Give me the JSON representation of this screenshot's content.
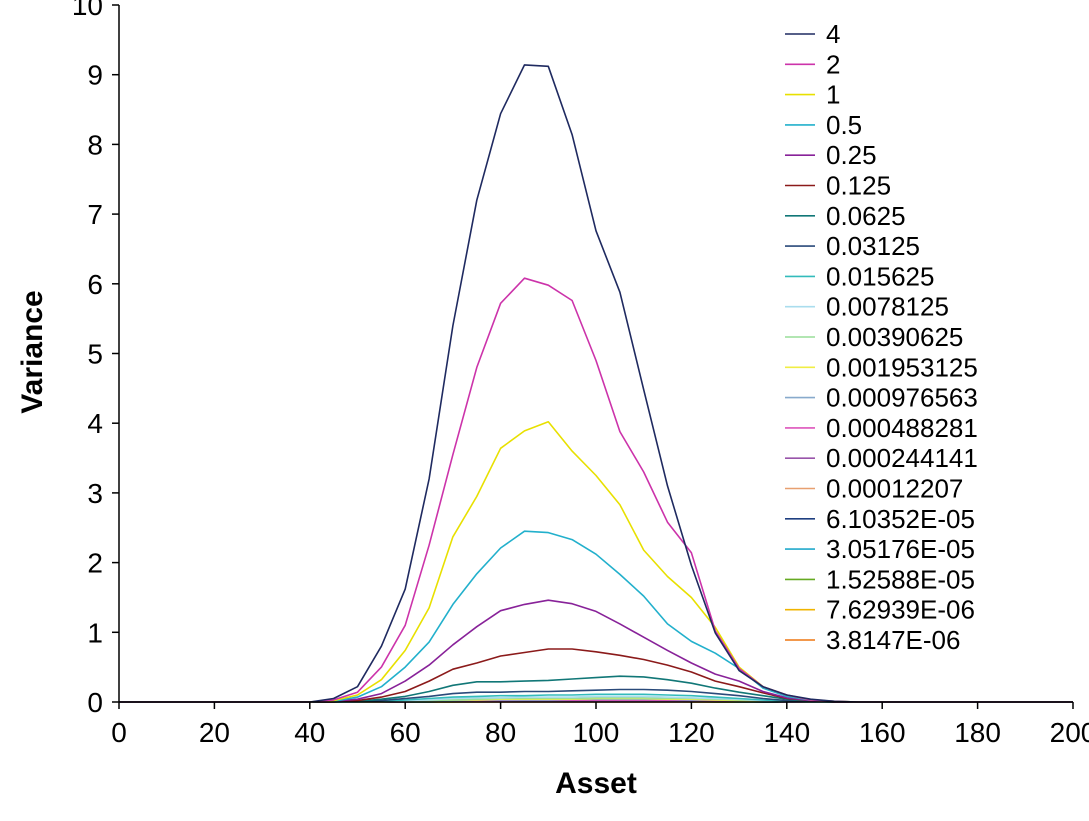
{
  "chart_data": {
    "type": "line",
    "xlabel": "Asset",
    "ylabel": "Variance",
    "xlim": [
      0,
      200
    ],
    "ylim": [
      0,
      10
    ],
    "x_ticks": [
      "0",
      "20",
      "40",
      "60",
      "80",
      "100",
      "120",
      "140",
      "160",
      "180",
      "200"
    ],
    "y_ticks": [
      "0",
      "1",
      "2",
      "3",
      "4",
      "5",
      "6",
      "7",
      "8",
      "9",
      "10"
    ],
    "grid": false,
    "legend_position": "top-right",
    "x": [
      0,
      5,
      10,
      15,
      20,
      25,
      30,
      35,
      40,
      45,
      50,
      55,
      60,
      65,
      70,
      75,
      80,
      85,
      90,
      95,
      100,
      105,
      110,
      115,
      120,
      125,
      130,
      135,
      140,
      145,
      150,
      155,
      160,
      165,
      170,
      175,
      180,
      185,
      190,
      195,
      200
    ],
    "series": [
      {
        "name": "4",
        "color": "#1f2a60",
        "values": [
          0,
          0,
          0,
          0,
          0,
          0,
          0,
          0,
          0,
          0.05,
          0.22,
          0.8,
          1.62,
          3.2,
          5.4,
          7.2,
          8.44,
          9.14,
          9.12,
          8.14,
          6.76,
          5.88,
          4.48,
          3.1,
          1.96,
          0.99,
          0.45,
          0.22,
          0.1,
          0.04,
          0.01,
          0,
          0,
          0,
          0,
          0,
          0,
          0,
          0,
          0,
          0
        ]
      },
      {
        "name": "2",
        "color": "#cc33aa",
        "values": [
          0,
          0,
          0,
          0,
          0,
          0,
          0,
          0,
          0,
          0.03,
          0.14,
          0.5,
          1.1,
          2.25,
          3.55,
          4.8,
          5.72,
          6.08,
          5.98,
          5.76,
          4.9,
          3.88,
          3.3,
          2.58,
          2.14,
          1.02,
          0.48,
          0.22,
          0.1,
          0.03,
          0.01,
          0,
          0,
          0,
          0,
          0,
          0,
          0,
          0,
          0,
          0
        ]
      },
      {
        "name": "1",
        "color": "#e8e000",
        "values": [
          0,
          0,
          0,
          0,
          0,
          0,
          0,
          0,
          0,
          0.02,
          0.1,
          0.32,
          0.74,
          1.35,
          2.37,
          2.95,
          3.64,
          3.89,
          4.02,
          3.6,
          3.25,
          2.83,
          2.18,
          1.8,
          1.5,
          1.07,
          0.5,
          0.22,
          0.1,
          0.03,
          0.01,
          0,
          0,
          0,
          0,
          0,
          0,
          0,
          0,
          0,
          0
        ]
      },
      {
        "name": "0.5",
        "color": "#22b0cc",
        "values": [
          0,
          0,
          0,
          0,
          0,
          0,
          0,
          0,
          0,
          0.01,
          0.07,
          0.22,
          0.5,
          0.86,
          1.4,
          1.84,
          2.21,
          2.45,
          2.43,
          2.33,
          2.12,
          1.83,
          1.52,
          1.12,
          0.87,
          0.7,
          0.48,
          0.2,
          0.08,
          0.03,
          0.01,
          0,
          0,
          0,
          0,
          0,
          0,
          0,
          0,
          0,
          0
        ]
      },
      {
        "name": "0.25",
        "color": "#882299",
        "values": [
          0,
          0,
          0,
          0,
          0,
          0,
          0,
          0,
          0,
          0.01,
          0.04,
          0.12,
          0.3,
          0.53,
          0.82,
          1.08,
          1.31,
          1.4,
          1.46,
          1.41,
          1.3,
          1.12,
          0.93,
          0.74,
          0.56,
          0.4,
          0.3,
          0.15,
          0.06,
          0.02,
          0,
          0,
          0,
          0,
          0,
          0,
          0,
          0,
          0,
          0,
          0
        ]
      },
      {
        "name": "0.125",
        "color": "#8b1a1a",
        "values": [
          0,
          0,
          0,
          0,
          0,
          0,
          0,
          0,
          0,
          0,
          0.02,
          0.07,
          0.15,
          0.3,
          0.47,
          0.56,
          0.66,
          0.71,
          0.76,
          0.76,
          0.72,
          0.67,
          0.61,
          0.53,
          0.43,
          0.3,
          0.22,
          0.13,
          0.05,
          0.02,
          0,
          0,
          0,
          0,
          0,
          0,
          0,
          0,
          0,
          0,
          0
        ]
      },
      {
        "name": "0.0625",
        "color": "#117777",
        "values": [
          0,
          0,
          0,
          0,
          0,
          0,
          0,
          0,
          0,
          0,
          0.01,
          0.04,
          0.08,
          0.15,
          0.24,
          0.29,
          0.29,
          0.3,
          0.31,
          0.33,
          0.35,
          0.37,
          0.36,
          0.32,
          0.27,
          0.2,
          0.14,
          0.09,
          0.04,
          0.01,
          0,
          0,
          0,
          0,
          0,
          0,
          0,
          0,
          0,
          0,
          0
        ]
      },
      {
        "name": "0.03125",
        "color": "#2a4a7a",
        "values": [
          0,
          0,
          0,
          0,
          0,
          0,
          0,
          0,
          0,
          0,
          0.01,
          0.02,
          0.05,
          0.08,
          0.12,
          0.14,
          0.14,
          0.15,
          0.15,
          0.16,
          0.17,
          0.18,
          0.18,
          0.17,
          0.15,
          0.12,
          0.09,
          0.05,
          0.02,
          0.01,
          0,
          0,
          0,
          0,
          0,
          0,
          0,
          0,
          0,
          0,
          0
        ]
      },
      {
        "name": "0.015625",
        "color": "#33bbbb",
        "values": [
          0,
          0,
          0,
          0,
          0,
          0,
          0,
          0,
          0,
          0,
          0,
          0.01,
          0.03,
          0.05,
          0.07,
          0.08,
          0.09,
          0.09,
          0.1,
          0.1,
          0.11,
          0.11,
          0.11,
          0.1,
          0.09,
          0.07,
          0.05,
          0.03,
          0.01,
          0,
          0,
          0,
          0,
          0,
          0,
          0,
          0,
          0,
          0,
          0,
          0
        ]
      },
      {
        "name": "0.0078125",
        "color": "#aaddee",
        "values": [
          0,
          0,
          0,
          0,
          0,
          0,
          0,
          0,
          0,
          0,
          0,
          0.01,
          0.02,
          0.03,
          0.05,
          0.06,
          0.06,
          0.07,
          0.07,
          0.07,
          0.08,
          0.08,
          0.08,
          0.07,
          0.06,
          0.05,
          0.04,
          0.02,
          0.01,
          0,
          0,
          0,
          0,
          0,
          0,
          0,
          0,
          0,
          0,
          0,
          0
        ]
      },
      {
        "name": "0.00390625",
        "color": "#99dd99",
        "values": [
          0,
          0,
          0,
          0,
          0,
          0,
          0,
          0,
          0,
          0,
          0,
          0.01,
          0.01,
          0.02,
          0.03,
          0.04,
          0.05,
          0.05,
          0.05,
          0.05,
          0.06,
          0.06,
          0.06,
          0.05,
          0.05,
          0.04,
          0.03,
          0.02,
          0.01,
          0,
          0,
          0,
          0,
          0,
          0,
          0,
          0,
          0,
          0,
          0,
          0
        ]
      },
      {
        "name": "0.001953125",
        "color": "#f0ee44",
        "values": [
          0,
          0,
          0,
          0,
          0,
          0,
          0,
          0,
          0,
          0,
          0,
          0,
          0.01,
          0.02,
          0.03,
          0.03,
          0.04,
          0.04,
          0.04,
          0.04,
          0.05,
          0.05,
          0.05,
          0.04,
          0.04,
          0.03,
          0.02,
          0.01,
          0.01,
          0,
          0,
          0,
          0,
          0,
          0,
          0,
          0,
          0,
          0,
          0,
          0
        ]
      },
      {
        "name": "0.000976563",
        "color": "#88aacc",
        "values": [
          0,
          0,
          0,
          0,
          0,
          0,
          0,
          0,
          0,
          0,
          0,
          0,
          0.01,
          0.01,
          0.02,
          0.03,
          0.03,
          0.03,
          0.03,
          0.04,
          0.04,
          0.04,
          0.04,
          0.04,
          0.03,
          0.03,
          0.02,
          0.01,
          0,
          0,
          0,
          0,
          0,
          0,
          0,
          0,
          0,
          0,
          0,
          0,
          0
        ]
      },
      {
        "name": "0.000488281",
        "color": "#dd55bb",
        "values": [
          0,
          0,
          0,
          0,
          0,
          0,
          0,
          0,
          0,
          0,
          0,
          0,
          0.01,
          0.01,
          0.02,
          0.02,
          0.02,
          0.03,
          0.03,
          0.03,
          0.03,
          0.03,
          0.03,
          0.03,
          0.03,
          0.02,
          0.02,
          0.01,
          0,
          0,
          0,
          0,
          0,
          0,
          0,
          0,
          0,
          0,
          0,
          0,
          0
        ]
      },
      {
        "name": "0.000244141",
        "color": "#9955aa",
        "values": [
          0,
          0,
          0,
          0,
          0,
          0,
          0,
          0,
          0,
          0,
          0,
          0,
          0,
          0.01,
          0.01,
          0.02,
          0.02,
          0.02,
          0.02,
          0.02,
          0.02,
          0.02,
          0.02,
          0.02,
          0.02,
          0.02,
          0.01,
          0.01,
          0,
          0,
          0,
          0,
          0,
          0,
          0,
          0,
          0,
          0,
          0,
          0,
          0
        ]
      },
      {
        "name": "0.00012207",
        "color": "#e8a070",
        "values": [
          0,
          0,
          0,
          0,
          0,
          0,
          0,
          0,
          0,
          0,
          0,
          0,
          0,
          0.01,
          0.01,
          0.01,
          0.02,
          0.02,
          0.02,
          0.02,
          0.02,
          0.02,
          0.02,
          0.02,
          0.02,
          0.01,
          0.01,
          0.01,
          0,
          0,
          0,
          0,
          0,
          0,
          0,
          0,
          0,
          0,
          0,
          0,
          0
        ]
      },
      {
        "name": "6.10352E-05",
        "color": "#1f3f80",
        "values": [
          0,
          0,
          0,
          0,
          0,
          0,
          0,
          0,
          0,
          0,
          0,
          0,
          0,
          0.01,
          0.01,
          0.01,
          0.01,
          0.01,
          0.01,
          0.02,
          0.02,
          0.02,
          0.02,
          0.01,
          0.01,
          0.01,
          0.01,
          0,
          0,
          0,
          0,
          0,
          0,
          0,
          0,
          0,
          0,
          0,
          0,
          0,
          0
        ]
      },
      {
        "name": "3.05176E-05",
        "color": "#22aacc",
        "values": [
          0,
          0,
          0,
          0,
          0,
          0,
          0,
          0,
          0,
          0,
          0,
          0,
          0,
          0,
          0.01,
          0.01,
          0.01,
          0.01,
          0.01,
          0.01,
          0.01,
          0.01,
          0.01,
          0.01,
          0.01,
          0.01,
          0,
          0,
          0,
          0,
          0,
          0,
          0,
          0,
          0,
          0,
          0,
          0,
          0,
          0,
          0
        ]
      },
      {
        "name": "1.52588E-05",
        "color": "#66aa22",
        "values": [
          0,
          0,
          0,
          0,
          0,
          0,
          0,
          0,
          0,
          0,
          0,
          0,
          0,
          0,
          0.01,
          0.01,
          0.01,
          0.01,
          0.01,
          0.01,
          0.01,
          0.01,
          0.01,
          0.01,
          0.01,
          0,
          0,
          0,
          0,
          0,
          0,
          0,
          0,
          0,
          0,
          0,
          0,
          0,
          0,
          0,
          0
        ]
      },
      {
        "name": "7.62939E-06",
        "color": "#f0b400",
        "values": [
          0,
          0,
          0,
          0,
          0,
          0,
          0,
          0,
          0,
          0,
          0,
          0,
          0,
          0,
          0,
          0.01,
          0.01,
          0.01,
          0.01,
          0.01,
          0.01,
          0.01,
          0.01,
          0.01,
          0,
          0,
          0,
          0,
          0,
          0,
          0,
          0,
          0,
          0,
          0,
          0,
          0,
          0,
          0,
          0,
          0
        ]
      },
      {
        "name": "3.8147E-06",
        "color": "#ee7711",
        "values": [
          0,
          0,
          0,
          0,
          0,
          0,
          0,
          0,
          0,
          0,
          0,
          0,
          0,
          0,
          0,
          0,
          0,
          0,
          0,
          0,
          0,
          0,
          0,
          0,
          0,
          0,
          0,
          0,
          0,
          0,
          0,
          0,
          0,
          0,
          0,
          0,
          0,
          0,
          0,
          0,
          0
        ]
      }
    ]
  }
}
